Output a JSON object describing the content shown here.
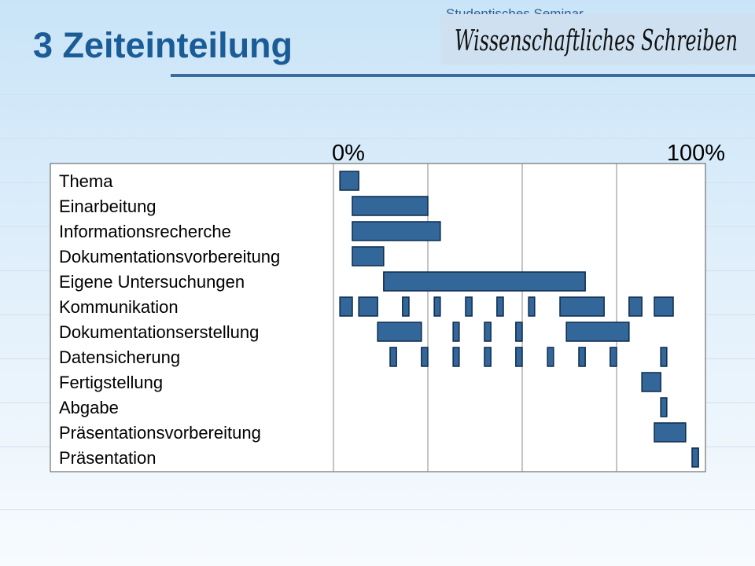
{
  "header": {
    "title": "3 Zeiteinteilung",
    "subtitle": "Studentisches Seminar",
    "logo_text": "Wissenschaftliches Schreiben"
  },
  "colors": {
    "bar_fill": "#336699",
    "bar_stroke": "#0d2a4d",
    "title": "#1b5c96",
    "rule": "#3b6a9c"
  },
  "chart_data": {
    "type": "gantt",
    "title": "",
    "x_axis": {
      "min": 0,
      "max": 100,
      "unit": "%",
      "tick_labels": [
        "0%",
        "100%"
      ],
      "tick_values": [
        0,
        100
      ]
    },
    "gridlines_x": [
      25,
      50,
      75
    ],
    "categories": [
      "Thema",
      "Einarbeitung",
      "Informationsrecherche",
      "Dokumentationsvorbereitung",
      "Eigene Untersuchungen",
      "Kommunikation",
      "Dokumentationserstellung",
      "Datensicherung",
      "Fertigstellung",
      "Abgabe",
      "Präsentationsvorbereitung",
      "Präsentation"
    ],
    "tasks": [
      {
        "name": "Thema",
        "segments": [
          [
            1.7,
            6.7
          ]
        ]
      },
      {
        "name": "Einarbeitung",
        "segments": [
          [
            5.0,
            25.0
          ]
        ]
      },
      {
        "name": "Informationsrecherche",
        "segments": [
          [
            5.0,
            28.3
          ]
        ]
      },
      {
        "name": "Dokumentationsvorbereitung",
        "segments": [
          [
            5.0,
            13.3
          ]
        ]
      },
      {
        "name": "Eigene Untersuchungen",
        "segments": [
          [
            13.3,
            66.7
          ]
        ]
      },
      {
        "name": "Kommunikation",
        "segments": [
          [
            1.7,
            5.0
          ],
          [
            6.7,
            11.7
          ],
          [
            18.3,
            20.0
          ],
          [
            26.7,
            28.3
          ],
          [
            35.0,
            36.7
          ],
          [
            43.3,
            45.0
          ],
          [
            51.7,
            53.3
          ],
          [
            60.0,
            71.7
          ],
          [
            78.3,
            81.7
          ],
          [
            85.0,
            90.0
          ]
        ]
      },
      {
        "name": "Dokumentationserstellung",
        "segments": [
          [
            11.7,
            23.3
          ],
          [
            31.7,
            33.3
          ],
          [
            40.0,
            41.7
          ],
          [
            48.3,
            50.0
          ],
          [
            61.7,
            78.3
          ]
        ]
      },
      {
        "name": "Datensicherung",
        "segments": [
          [
            15.0,
            16.7
          ],
          [
            23.3,
            25.0
          ],
          [
            31.7,
            33.3
          ],
          [
            40.0,
            41.7
          ],
          [
            48.3,
            50.0
          ],
          [
            56.7,
            58.3
          ],
          [
            65.0,
            66.7
          ],
          [
            73.3,
            75.0
          ],
          [
            86.7,
            88.3
          ]
        ]
      },
      {
        "name": "Fertigstellung",
        "segments": [
          [
            81.7,
            86.7
          ]
        ]
      },
      {
        "name": "Abgabe",
        "segments": [
          [
            86.7,
            88.3
          ]
        ]
      },
      {
        "name": "Präsentationsvorbereitung",
        "segments": [
          [
            85.0,
            93.3
          ]
        ]
      },
      {
        "name": "Präsentation",
        "segments": [
          [
            95.0,
            96.7
          ]
        ]
      }
    ]
  }
}
